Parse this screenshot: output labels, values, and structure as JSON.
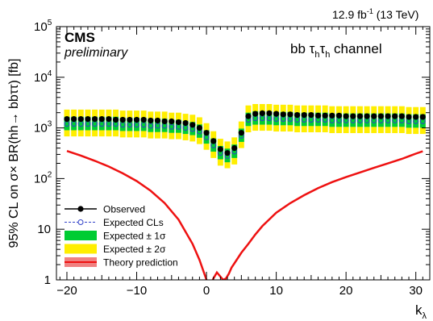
{
  "header": {
    "lumi": "12.9 fb",
    "lumi_sup": "-1",
    "energy": "(13 TeV)"
  },
  "labels": {
    "experiment": "CMS",
    "status": "preliminary",
    "channel_prefix": "bb ",
    "channel_tau": "τ",
    "channel_sub": "h",
    "channel_suffix": " channel"
  },
  "chart_data": {
    "type": "scatter",
    "xlabel": "k",
    "xlabel_sub": "λ",
    "ylabel": "95% CL on σ× BR(hh→ bbττ) [fb]",
    "xlim": [
      -21.5,
      32
    ],
    "ylim": [
      1,
      100000
    ],
    "yscale": "log",
    "x_ticks": [
      -20,
      -10,
      0,
      10,
      20,
      30
    ],
    "y_ticks": [
      {
        "value": 1,
        "label": "1"
      },
      {
        "value": 10,
        "label": "10"
      },
      {
        "value": 100,
        "base": "10",
        "exp": "2"
      },
      {
        "value": 1000,
        "base": "10",
        "exp": "3"
      },
      {
        "value": 10000,
        "base": "10",
        "exp": "4"
      },
      {
        "value": 100000,
        "base": "10",
        "exp": "5"
      }
    ],
    "legend_position": "bottom-left",
    "legend": [
      {
        "key": "obs",
        "label": "Observed"
      },
      {
        "key": "exp",
        "label": "Expected CLs"
      },
      {
        "key": "s1",
        "label": "Expected ± 1σ"
      },
      {
        "key": "s2",
        "label": "Expected ± 2σ"
      },
      {
        "key": "th",
        "label": "Theory prediction"
      }
    ],
    "colors": {
      "observed": "#000000",
      "expected": "#3040c8",
      "sigma1": "#00cc33",
      "sigma2": "#ffee00",
      "theory": "#ee1111"
    },
    "kl": [
      -20,
      -19,
      -18,
      -17,
      -16,
      -15,
      -14,
      -13,
      -12,
      -11,
      -10,
      -9,
      -8,
      -7,
      -6,
      -5,
      -4,
      -3,
      -2,
      -1,
      0,
      1,
      2,
      3,
      4,
      5,
      6,
      7,
      8,
      9,
      10,
      11,
      12,
      13,
      14,
      15,
      16,
      17,
      18,
      19,
      20,
      21,
      22,
      23,
      24,
      25,
      26,
      27,
      28,
      29,
      30,
      31
    ],
    "series": [
      {
        "name": "Observed",
        "values": [
          1500,
          1500,
          1500,
          1500,
          1500,
          1500,
          1500,
          1450,
          1450,
          1450,
          1450,
          1450,
          1400,
          1400,
          1350,
          1350,
          1300,
          1250,
          1150,
          1000,
          800,
          550,
          380,
          320,
          400,
          800,
          1700,
          1900,
          1950,
          1950,
          1900,
          1850,
          1850,
          1800,
          1800,
          1800,
          1750,
          1750,
          1750,
          1750,
          1700,
          1700,
          1700,
          1700,
          1700,
          1700,
          1700,
          1700,
          1700,
          1650,
          1650,
          1650
        ]
      },
      {
        "name": "Expected CLs",
        "values": [
          1200,
          1200,
          1200,
          1200,
          1200,
          1200,
          1200,
          1200,
          1150,
          1150,
          1150,
          1150,
          1100,
          1100,
          1100,
          1050,
          1050,
          1000,
          950,
          850,
          650,
          450,
          320,
          280,
          340,
          700,
          1450,
          1550,
          1550,
          1550,
          1500,
          1500,
          1500,
          1450,
          1450,
          1450,
          1450,
          1450,
          1400,
          1400,
          1400,
          1400,
          1400,
          1400,
          1400,
          1400,
          1400,
          1400,
          1400,
          1350,
          1350,
          1350
        ]
      },
      {
        "name": "Expected ± 1σ",
        "low": [
          900,
          900,
          900,
          900,
          900,
          900,
          900,
          900,
          870,
          870,
          870,
          870,
          830,
          830,
          830,
          800,
          800,
          760,
          720,
          640,
          490,
          340,
          240,
          210,
          255,
          530,
          1090,
          1160,
          1160,
          1160,
          1130,
          1130,
          1130,
          1090,
          1090,
          1090,
          1090,
          1090,
          1050,
          1050,
          1050,
          1050,
          1050,
          1050,
          1050,
          1050,
          1050,
          1050,
          1050,
          1010,
          1010,
          1010
        ],
        "high": [
          1660,
          1660,
          1660,
          1660,
          1660,
          1660,
          1660,
          1660,
          1590,
          1590,
          1590,
          1590,
          1520,
          1520,
          1520,
          1450,
          1450,
          1380,
          1310,
          1170,
          900,
          620,
          440,
          390,
          470,
          970,
          2000,
          2140,
          2140,
          2140,
          2070,
          2070,
          2070,
          2000,
          2000,
          2000,
          2000,
          2000,
          1930,
          1930,
          1930,
          1930,
          1930,
          1930,
          1930,
          1930,
          1930,
          1930,
          1930,
          1860,
          1860,
          1860
        ]
      },
      {
        "name": "Expected ± 2σ",
        "low": [
          680,
          680,
          680,
          680,
          680,
          680,
          680,
          680,
          650,
          650,
          650,
          650,
          620,
          620,
          620,
          600,
          600,
          570,
          540,
          480,
          370,
          255,
          180,
          160,
          190,
          400,
          820,
          880,
          880,
          880,
          850,
          850,
          850,
          820,
          820,
          820,
          820,
          820,
          790,
          790,
          790,
          790,
          790,
          790,
          790,
          790,
          790,
          790,
          790,
          760,
          760,
          760
        ],
        "high": [
          2300,
          2300,
          2300,
          2300,
          2300,
          2300,
          2300,
          2300,
          2200,
          2200,
          2200,
          2200,
          2100,
          2100,
          2100,
          2000,
          2000,
          1900,
          1820,
          1620,
          1240,
          860,
          610,
          540,
          650,
          1340,
          2780,
          2960,
          2960,
          2960,
          2870,
          2870,
          2870,
          2780,
          2780,
          2780,
          2780,
          2780,
          2680,
          2680,
          2680,
          2680,
          2680,
          2680,
          2680,
          2680,
          2680,
          2680,
          2680,
          2580,
          2580,
          2580
        ]
      },
      {
        "name": "Theory prediction",
        "x": [
          -20,
          -18,
          -16,
          -14,
          -12,
          -10,
          -8,
          -6,
          -4,
          -2,
          -1,
          0,
          0.5,
          1,
          1.5,
          2,
          2.4,
          2.8,
          3.2,
          3.6,
          4,
          5,
          6,
          7,
          8,
          10,
          12,
          14,
          16,
          18,
          20,
          22,
          24,
          26,
          28,
          30,
          31
        ],
        "values": [
          350,
          284,
          224,
          173,
          127,
          89.3,
          57.4,
          32.9,
          15.5,
          5.14,
          2.48,
          1.0,
          0.76,
          1.07,
          1.4,
          1.16,
          1.0,
          1.07,
          1.32,
          1.75,
          2.12,
          3.43,
          5.14,
          7.84,
          11.5,
          21.2,
          32.7,
          47.0,
          64.9,
          85.0,
          107,
          132,
          163,
          199,
          245,
          310,
          345
        ]
      }
    ]
  }
}
